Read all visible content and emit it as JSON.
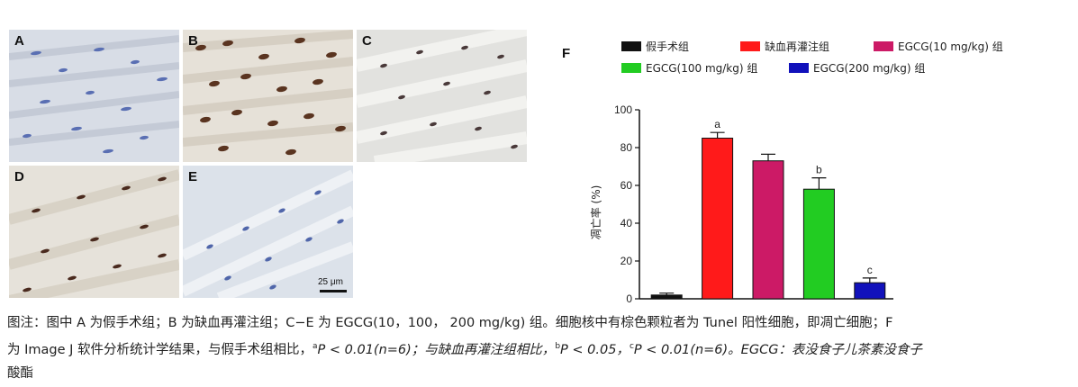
{
  "figure": {
    "panel_labels": [
      "A",
      "B",
      "C",
      "D",
      "E"
    ],
    "scale_bar_label": "25 μm",
    "chart_panel_label": "F"
  },
  "chart_data": {
    "type": "bar",
    "ylabel": "凋亡率 (%)",
    "ylim": [
      0,
      100
    ],
    "yticks": [
      0,
      20,
      40,
      60,
      80,
      100
    ],
    "legend_position": "top",
    "categories": [
      "假手术组",
      "缺血再灌注组",
      "EGCG(10 mg/kg) 组",
      "EGCG(100 mg/kg) 组",
      "EGCG(200 mg/kg) 组"
    ],
    "values": [
      2,
      85,
      73,
      58,
      8.5
    ],
    "errors": [
      1,
      3,
      3.5,
      6,
      2.5
    ],
    "annotations": [
      "",
      "a",
      "",
      "b",
      "c"
    ],
    "colors": [
      "#111111",
      "#ff1a1a",
      "#cc1a66",
      "#22cc22",
      "#1111bb"
    ]
  },
  "caption": {
    "line1": "图注：图中 A 为假手术组；B 为缺血再灌注组；C−E 为 EGCG(10，100， 200 mg/kg) 组。细胞核中有棕色颗粒者为 Tunel 阳性细胞，即凋亡细胞；F",
    "line2_a": "为 Image J 软件分析统计学结果，与假手术组相比，",
    "sup_a": "a",
    "line2_b": "P < 0.01(n=6)；与缺血再灌注组相比，",
    "sup_b": "b",
    "line2_c": "P < 0.05，",
    "sup_c": "c",
    "line2_d": "P < 0.01(n=6)。EGCG：表没食子儿茶素没食子",
    "line3": "酸酯"
  }
}
